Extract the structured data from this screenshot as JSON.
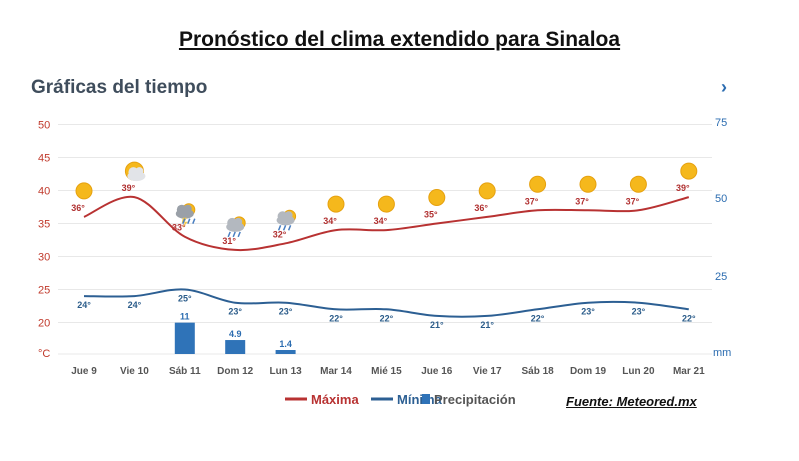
{
  "header": {
    "title": "Pronóstico del clima extendido para Sinaloa"
  },
  "panel": {
    "title": "Gráficas del tiempo",
    "chevron": "›"
  },
  "source": "Fuente: Meteored.mx",
  "colors": {
    "max": "#b83232",
    "min": "#2c5f93",
    "precip": "#2f73b8",
    "sun": "#f5b81c",
    "cloud": "#c9ccd2",
    "rain": "#4a7fc1"
  },
  "chart_data": {
    "type": "line",
    "categories": [
      "Jue 9",
      "Vie 10",
      "Sáb 11",
      "Dom 12",
      "Lun 13",
      "Mar 14",
      "Mié 15",
      "Jue 16",
      "Vie 17",
      "Sáb 18",
      "Dom 19",
      "Lun 20",
      "Mar 21"
    ],
    "series": [
      {
        "name": "Máxima",
        "type": "line",
        "axis": "left",
        "values": [
          36,
          39,
          33,
          31,
          32,
          34,
          34,
          35,
          36,
          37,
          37,
          37,
          39
        ],
        "labels": [
          "36°",
          "39°",
          "33°",
          "31°",
          "32°",
          "34°",
          "34°",
          "35°",
          "36°",
          "37°",
          "37°",
          "37°",
          "39°"
        ]
      },
      {
        "name": "Mínima",
        "type": "line",
        "axis": "left",
        "values": [
          24,
          24,
          25,
          23,
          23,
          22,
          22,
          21,
          21,
          22,
          23,
          23,
          22
        ],
        "labels": [
          "24°",
          "24°",
          "25°",
          "23°",
          "23°",
          "22°",
          "22°",
          "21°",
          "21°",
          "22°",
          "23°",
          "23°",
          "22°"
        ]
      },
      {
        "name": "Precipitación",
        "type": "bar",
        "axis": "right",
        "values": [
          0,
          0,
          11,
          4.9,
          1.4,
          0,
          0,
          0,
          0,
          0,
          0,
          0,
          0
        ],
        "labels": [
          "",
          "",
          "11",
          "4.9",
          "1.4",
          "",
          "",
          "",
          "",
          "",
          "",
          "",
          ""
        ]
      }
    ],
    "icons": [
      "sun-icon",
      "sun-cloud-icon",
      "storm-icon",
      "rain-icon",
      "rain-icon",
      "sun-icon",
      "sun-icon",
      "sun-icon",
      "sun-icon",
      "sun-icon",
      "sun-icon",
      "sun-icon",
      "sun-icon"
    ],
    "y_left": {
      "ticks": [
        "20",
        "25",
        "30",
        "35",
        "40",
        "45",
        "50"
      ],
      "unit": "°C",
      "ylim": [
        18,
        50
      ]
    },
    "y_right": {
      "ticks": [
        "25",
        "50",
        "75"
      ],
      "unit": "mm",
      "ylim": [
        0,
        75
      ]
    },
    "legend": {
      "placement": "bottom-center"
    }
  }
}
